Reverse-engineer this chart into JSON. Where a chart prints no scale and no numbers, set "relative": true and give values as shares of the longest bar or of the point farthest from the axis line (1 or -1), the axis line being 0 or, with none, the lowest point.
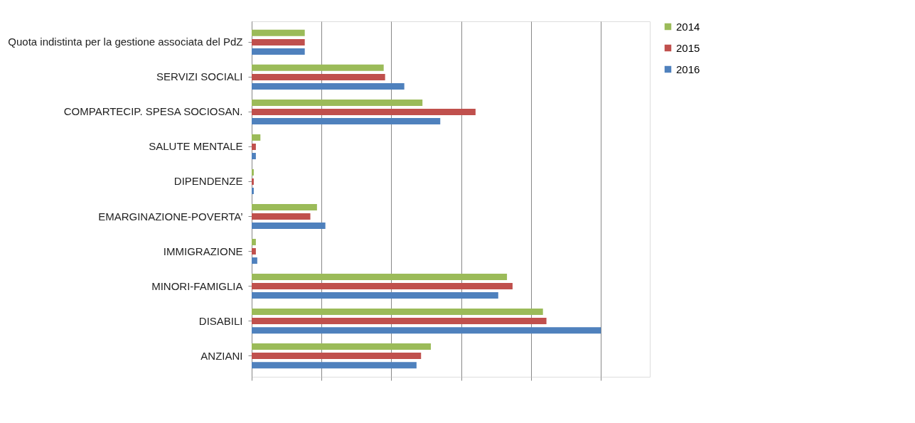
{
  "chart_data": {
    "type": "bar",
    "orientation": "horizontal",
    "relative": true,
    "grid": "x",
    "legend": "right",
    "categories": [
      "Quota indistinta per la gestione associata del PdZ",
      "SERVIZI SOCIALI",
      "COMPARTECIP. SPESA SOCIOSAN.",
      "SALUTE MENTALE",
      "DIPENDENZE",
      "EMARGINAZIONE-POVERTA’",
      "IMMIGRAZIONE",
      "MINORI-FAMIGLIA",
      "DISABILI",
      "ANZIANI"
    ],
    "series": [
      {
        "name": "2014",
        "color": "#9bbb59",
        "values": [
          0.152,
          0.378,
          0.489,
          0.025,
          0.006,
          0.187,
          0.012,
          0.731,
          0.834,
          0.513
        ]
      },
      {
        "name": "2015",
        "color": "#c0504d",
        "values": [
          0.152,
          0.382,
          0.641,
          0.012,
          0.006,
          0.168,
          0.012,
          0.747,
          0.844,
          0.485
        ]
      },
      {
        "name": "2016",
        "color": "#4f81bd",
        "values": [
          0.152,
          0.437,
          0.54,
          0.012,
          0.006,
          0.211,
          0.016,
          0.706,
          1.0,
          0.472
        ]
      }
    ]
  }
}
